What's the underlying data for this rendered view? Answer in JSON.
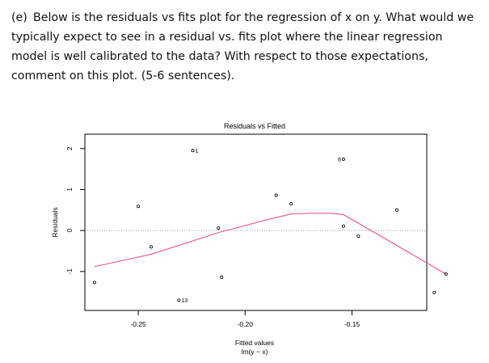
{
  "question": {
    "label": "(e)",
    "text": "Below is the residuals vs fits plot for the regression of x on y. What would we typically expect to see in a residual vs. fits plot where the linear regression model is well calibrated to the data? With respect to those expectations, comment on this plot. (5-6 sentences)."
  },
  "chart_data": {
    "type": "scatter",
    "title": "Residuals vs Fitted",
    "xlabel": "Fitted values",
    "xlabel_sub": "lm(y ~ x)",
    "ylabel": "Residuals",
    "xlim": [
      -0.275,
      -0.115
    ],
    "ylim": [
      -1.95,
      2.35
    ],
    "x_ticks": [
      -0.25,
      -0.2,
      -0.15
    ],
    "x_tick_labels": [
      "-0.25",
      "-0.20",
      "-0.15"
    ],
    "y_ticks": [
      -1,
      0,
      1,
      2
    ],
    "y_tick_labels": [
      "-1",
      "0",
      "1",
      "2"
    ],
    "zero_line": 0,
    "points": [
      {
        "x": -0.2705,
        "y": -1.27
      },
      {
        "x": -0.25,
        "y": 0.59
      },
      {
        "x": -0.244,
        "y": -0.4
      },
      {
        "x": -0.231,
        "y": -1.7,
        "label": "13"
      },
      {
        "x": -0.2245,
        "y": 1.95,
        "label": "1"
      },
      {
        "x": -0.2125,
        "y": 0.06
      },
      {
        "x": -0.211,
        "y": -1.14
      },
      {
        "x": -0.1855,
        "y": 0.86
      },
      {
        "x": -0.1785,
        "y": 0.65
      },
      {
        "x": -0.154,
        "y": 1.74,
        "label": "8"
      },
      {
        "x": -0.154,
        "y": 0.11
      },
      {
        "x": -0.147,
        "y": -0.14
      },
      {
        "x": -0.129,
        "y": 0.5
      },
      {
        "x": -0.1115,
        "y": -1.51
      },
      {
        "x": -0.106,
        "y": -1.06
      }
    ],
    "smoother": {
      "name": "",
      "color": "#e8487a",
      "x": [
        -0.2705,
        -0.244,
        -0.2125,
        -0.19,
        -0.178,
        -0.17,
        -0.16,
        -0.154,
        -0.106
      ],
      "y": [
        -0.88,
        -0.58,
        -0.05,
        0.26,
        0.41,
        0.42,
        0.42,
        0.39,
        -1.06
      ]
    },
    "grid": false,
    "point_color": "#000000",
    "zero_line_color": "#9a9a9a"
  }
}
